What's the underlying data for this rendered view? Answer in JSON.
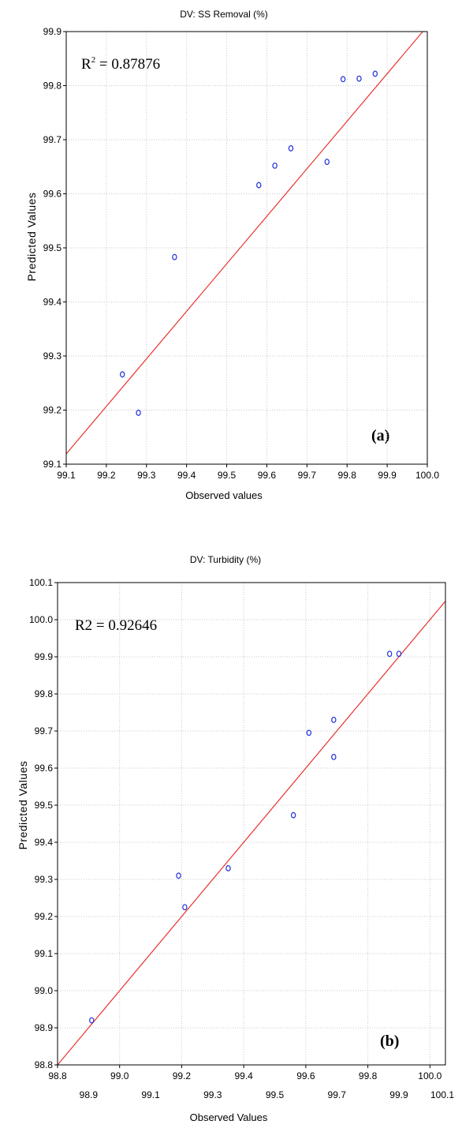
{
  "chart_data": [
    {
      "type": "scatter",
      "title": "DV: SS Removal (%)",
      "xlabel": "Observed values",
      "ylabel": "Predicted Values",
      "annotation": "R",
      "annotation_sup": "2",
      "annotation_value": " = 0.87876",
      "panel_label": "(a)",
      "xlim": [
        99.1,
        100.0
      ],
      "ylim": [
        99.1,
        99.9
      ],
      "xticks": [
        "99.1",
        "99.2",
        "99.3",
        "99.4",
        "99.5",
        "99.6",
        "99.7",
        "99.8",
        "99.9",
        "100.0"
      ],
      "yticks": [
        "99.1",
        "99.2",
        "99.3",
        "99.4",
        "99.5",
        "99.6",
        "99.7",
        "99.8",
        "99.9"
      ],
      "grid": true,
      "fit_line": {
        "intercept": 12.02,
        "slope": 0.8789
      },
      "points": [
        {
          "x": 99.24,
          "y": 99.266
        },
        {
          "x": 99.28,
          "y": 99.195
        },
        {
          "x": 99.37,
          "y": 99.483
        },
        {
          "x": 99.58,
          "y": 99.616
        },
        {
          "x": 99.62,
          "y": 99.652
        },
        {
          "x": 99.66,
          "y": 99.684
        },
        {
          "x": 99.75,
          "y": 99.659
        },
        {
          "x": 99.79,
          "y": 99.812
        },
        {
          "x": 99.83,
          "y": 99.813
        },
        {
          "x": 99.87,
          "y": 99.822
        }
      ]
    },
    {
      "type": "scatter",
      "title": "DV: Turbidity (%)",
      "xlabel": "Observed Values",
      "ylabel": "Predicted Values",
      "annotation": "R2 = 0.92646",
      "panel_label": "(b)",
      "xlim": [
        98.8,
        100.05
      ],
      "ylim": [
        98.8,
        100.1
      ],
      "xticks_top": [
        "98.8",
        "99.0",
        "99.2",
        "99.4",
        "99.6",
        "99.8",
        "100.0"
      ],
      "xticks_top_values": [
        98.8,
        99.0,
        99.2,
        99.4,
        99.6,
        99.8,
        100.0
      ],
      "xticks_bottom": [
        "98.9",
        "99.1",
        "99.3",
        "99.5",
        "99.7",
        "99.9",
        "100.1"
      ],
      "xticks_bottom_values": [
        98.9,
        99.1,
        99.3,
        99.5,
        99.7,
        99.9,
        100.1
      ],
      "yticks": [
        "98.8",
        "98.9",
        "99.0",
        "99.1",
        "99.2",
        "99.3",
        "99.4",
        "99.5",
        "99.6",
        "99.7",
        "99.8",
        "99.9",
        "100.0",
        "100.1"
      ],
      "grid": true,
      "fit_line": {
        "intercept": 0.0,
        "slope": 1.0
      },
      "points": [
        {
          "x": 98.91,
          "y": 98.92
        },
        {
          "x": 99.19,
          "y": 99.31
        },
        {
          "x": 99.21,
          "y": 99.225
        },
        {
          "x": 99.35,
          "y": 99.33
        },
        {
          "x": 99.56,
          "y": 99.473
        },
        {
          "x": 99.61,
          "y": 99.695
        },
        {
          "x": 99.69,
          "y": 99.73
        },
        {
          "x": 99.69,
          "y": 99.63
        },
        {
          "x": 99.87,
          "y": 99.908
        },
        {
          "x": 99.9,
          "y": 99.908
        }
      ]
    }
  ]
}
